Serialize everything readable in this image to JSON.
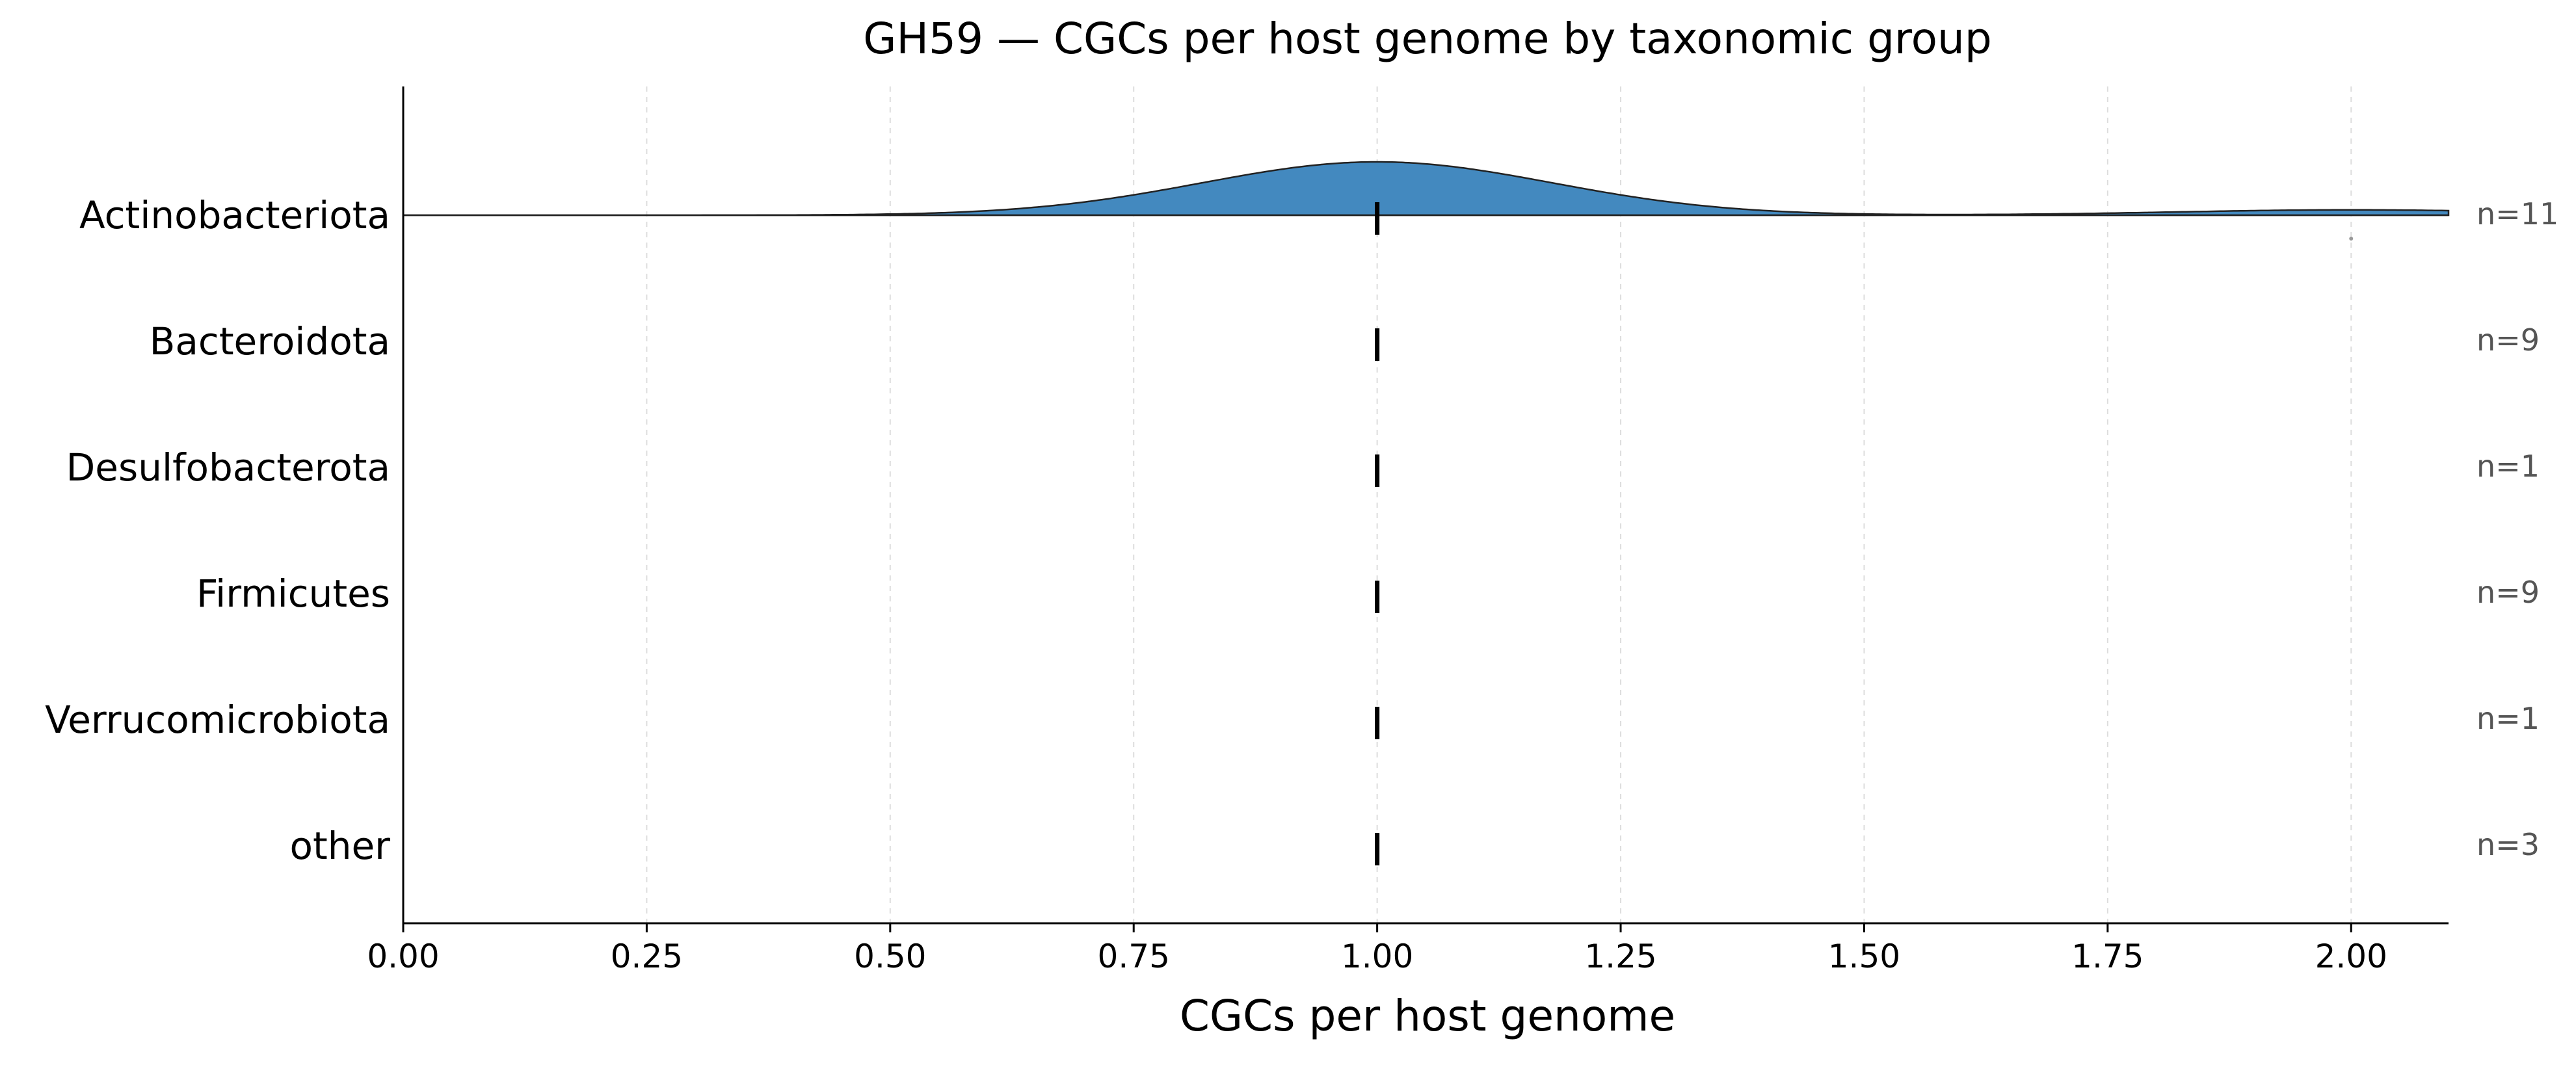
{
  "chart_data": {
    "type": "ridgeline",
    "title": "GH59 — CGCs per host genome by taxonomic group",
    "xlabel": "CGCs per host genome",
    "ylabel": "",
    "xlim": [
      0,
      2.1
    ],
    "x_ticks": [
      "0.00",
      "0.25",
      "0.50",
      "0.75",
      "1.00",
      "1.25",
      "1.50",
      "1.75",
      "2.00"
    ],
    "x_tick_values": [
      0,
      0.25,
      0.5,
      0.75,
      1.0,
      1.25,
      1.5,
      1.75,
      2.0
    ],
    "grid": "vertical dashed",
    "categories": [
      "Actinobacteriota",
      "Bacteroidota",
      "Desulfobacterota",
      "Firmicutes",
      "Verrucomicrobiota",
      "other"
    ],
    "counts": [
      "n=11",
      "n=9",
      "n=1",
      "n=9",
      "n=1",
      "n=3"
    ],
    "medians": [
      1.0,
      1.0,
      1.0,
      1.0,
      1.0,
      1.0
    ],
    "series": [
      {
        "category": "Actinobacteriota",
        "density_peak_height": 1.0,
        "components": [
          {
            "mean": 1.0,
            "sd": 0.18,
            "weight": 10
          },
          {
            "mean": 2.0,
            "sd": 0.18,
            "weight": 1
          }
        ],
        "points": [
          2.0
        ]
      }
    ],
    "colors": {
      "fill": "#4389bf",
      "median_tick": "#000000",
      "count_text": "#555555",
      "grid": "#dddddd",
      "axis": "#000000"
    }
  }
}
